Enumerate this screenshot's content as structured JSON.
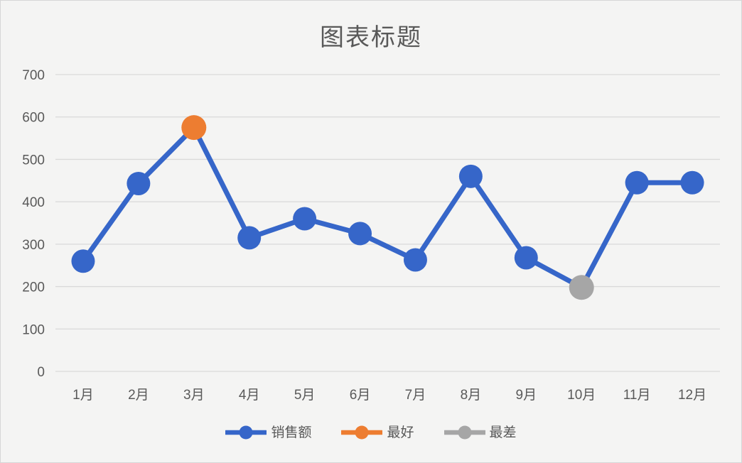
{
  "window": {
    "background": "#f4f4f3",
    "border_color": "#d6d6d6"
  },
  "chart_data": {
    "type": "line",
    "title": "图表标题",
    "categories": [
      "1月",
      "2月",
      "3月",
      "4月",
      "5月",
      "6月",
      "7月",
      "8月",
      "9月",
      "10月",
      "11月",
      "12月"
    ],
    "series": [
      {
        "name": "销售额",
        "color": "#3666C9",
        "values": [
          260,
          443,
          575,
          315,
          360,
          325,
          263,
          460,
          268,
          198,
          445,
          445
        ]
      },
      {
        "name": "最好",
        "color": "#ED7D31",
        "highlight": {
          "category": "3月",
          "value": 575
        }
      },
      {
        "name": "最差",
        "color": "#A6A6A6",
        "highlight": {
          "category": "10月",
          "value": 198
        }
      }
    ],
    "xlabel": "",
    "ylabel": "",
    "ylim": [
      0,
      700
    ],
    "ytick_step": 100,
    "y_ticks": [
      0,
      100,
      200,
      300,
      400,
      500,
      600,
      700
    ],
    "grid": true,
    "gridline_color": "#d9d9d9",
    "axis_label_color": "#595959",
    "legend_position": "bottom"
  }
}
